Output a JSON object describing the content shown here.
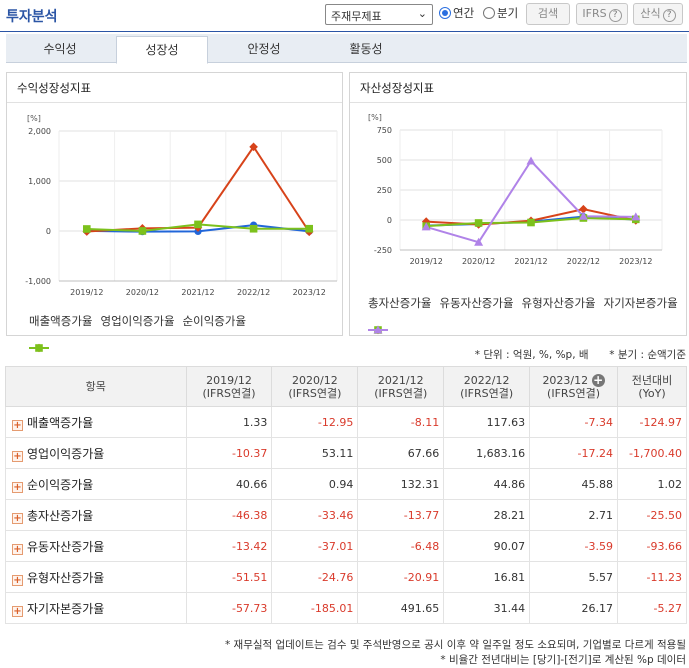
{
  "header": {
    "title": "투자분석",
    "report_select": "주재무제표",
    "radio_annual": "연간",
    "radio_quarter": "분기",
    "search_button": "검색",
    "ifrs_button": "IFRS",
    "calc_button": "산식",
    "help_glyph": "?"
  },
  "tabs": [
    {
      "label": "수익성",
      "active": false
    },
    {
      "label": "성장성",
      "active": true
    },
    {
      "label": "안정성",
      "active": false
    },
    {
      "label": "활동성",
      "active": false
    }
  ],
  "colors": {
    "blue": "#2166d9",
    "red": "#d7431a",
    "green": "#7cc11c",
    "purple": "#b083e8",
    "negative_text": "#d93a2b"
  },
  "chart_data": [
    {
      "type": "line",
      "title": "수익성장성지표",
      "ylabel": "[%]",
      "x": [
        "2019/12",
        "2020/12",
        "2021/12",
        "2022/12",
        "2023/12"
      ],
      "yticks": [
        "2,000",
        "1,000",
        "0",
        "-1,000"
      ],
      "ylim": [
        -1000,
        2000
      ],
      "series": [
        {
          "name": "매출액증가율",
          "color": "#2166d9",
          "marker": "circle",
          "values": [
            1.33,
            -12.95,
            -8.11,
            117.63,
            -7.34
          ]
        },
        {
          "name": "영업이익증가율",
          "color": "#d7431a",
          "marker": "diamond",
          "values": [
            -10.37,
            53.11,
            67.66,
            1683.16,
            -17.24
          ]
        },
        {
          "name": "순이익증가율",
          "color": "#7cc11c",
          "marker": "square",
          "values": [
            40.66,
            0.94,
            132.31,
            44.86,
            45.88
          ]
        }
      ]
    },
    {
      "type": "line",
      "title": "자산성장성지표",
      "ylabel": "[%]",
      "x": [
        "2019/12",
        "2020/12",
        "2021/12",
        "2022/12",
        "2023/12"
      ],
      "yticks": [
        "750",
        "500",
        "250",
        "0",
        "-250"
      ],
      "ylim": [
        -250,
        750
      ],
      "series": [
        {
          "name": "총자산증가율",
          "color": "#2166d9",
          "marker": "circle",
          "values": [
            -46.38,
            -33.46,
            -13.77,
            28.21,
            2.71
          ]
        },
        {
          "name": "유동자산증가율",
          "color": "#d7431a",
          "marker": "diamond",
          "values": [
            -13.42,
            -37.01,
            -6.48,
            90.07,
            -3.59
          ]
        },
        {
          "name": "유형자산증가율",
          "color": "#7cc11c",
          "marker": "square",
          "values": [
            -51.51,
            -24.76,
            -20.91,
            16.81,
            5.57
          ]
        },
        {
          "name": "자기자본증가율",
          "color": "#b083e8",
          "marker": "triangle",
          "values": [
            -57.73,
            -185.01,
            491.65,
            31.44,
            26.17
          ]
        }
      ]
    }
  ],
  "notes": {
    "unit": "* 단위 : 억원, %, %p, 배",
    "quarter": "* 분기 : 순액기준",
    "footnote1": "* 재무실적 업데이트는 검수 및 주석반영으로 공시 이후 약 일주일 정도 소요되며, 기업별로 다르게 적용될",
    "footnote2": "* 비율간 전년대비는 [당기]-[전기]로 계산된 %p 데이터"
  },
  "table": {
    "header_item": "항목",
    "columns": [
      {
        "line1": "2019/12",
        "line2": "(IFRS연결)"
      },
      {
        "line1": "2020/12",
        "line2": "(IFRS연결)"
      },
      {
        "line1": "2021/12",
        "line2": "(IFRS연결)"
      },
      {
        "line1": "2022/12",
        "line2": "(IFRS연결)"
      },
      {
        "line1": "2023/12",
        "line2": "(IFRS연결)"
      },
      {
        "line1": "전년대비",
        "line2": "(YoY)"
      }
    ],
    "rows": [
      {
        "label": "매출액증가율",
        "values": [
          "1.33",
          "-12.95",
          "-8.11",
          "117.63",
          "-7.34",
          "-124.97"
        ]
      },
      {
        "label": "영업이익증가율",
        "values": [
          "-10.37",
          "53.11",
          "67.66",
          "1,683.16",
          "-17.24",
          "-1,700.40"
        ]
      },
      {
        "label": "순이익증가율",
        "values": [
          "40.66",
          "0.94",
          "132.31",
          "44.86",
          "45.88",
          "1.02"
        ]
      },
      {
        "label": "총자산증가율",
        "values": [
          "-46.38",
          "-33.46",
          "-13.77",
          "28.21",
          "2.71",
          "-25.50"
        ]
      },
      {
        "label": "유동자산증가율",
        "values": [
          "-13.42",
          "-37.01",
          "-6.48",
          "90.07",
          "-3.59",
          "-93.66"
        ]
      },
      {
        "label": "유형자산증가율",
        "values": [
          "-51.51",
          "-24.76",
          "-20.91",
          "16.81",
          "5.57",
          "-11.23"
        ]
      },
      {
        "label": "자기자본증가율",
        "values": [
          "-57.73",
          "-185.01",
          "491.65",
          "31.44",
          "26.17",
          "-5.27"
        ]
      }
    ]
  }
}
